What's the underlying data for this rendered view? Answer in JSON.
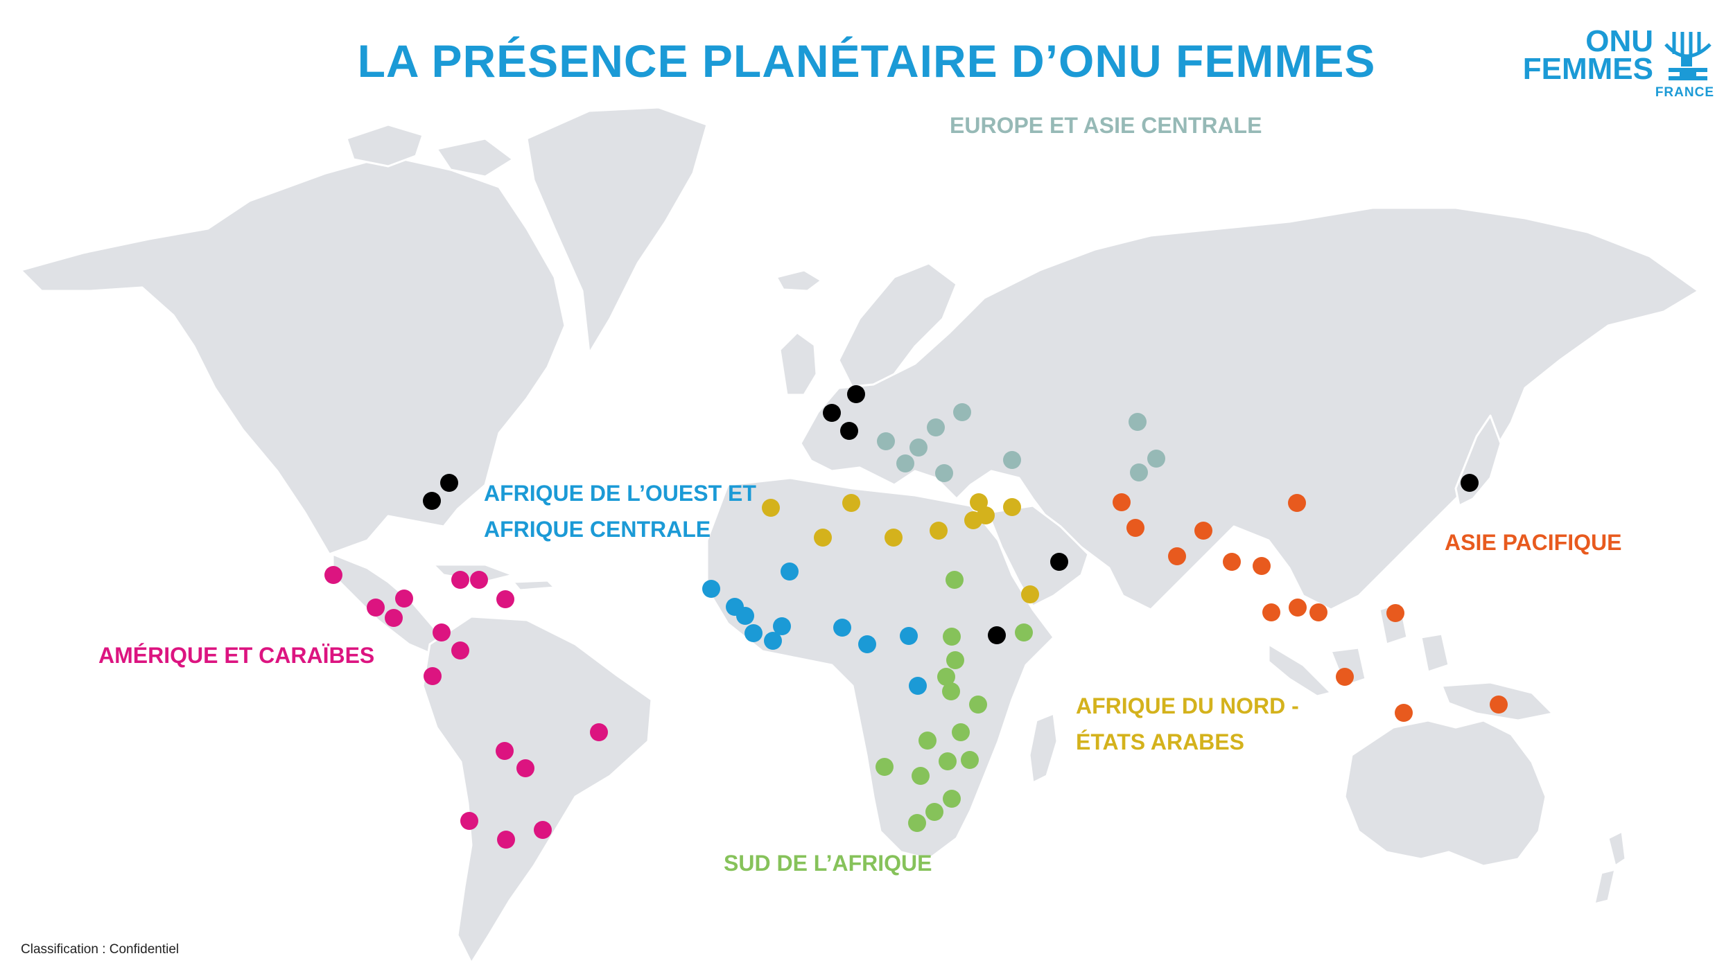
{
  "title": "LA PRÉSENCE PLANÉTAIRE D’ONU FEMMES",
  "logo": {
    "line1": "ONU",
    "line2": "FEMMES",
    "line3": "FRANCE"
  },
  "footer": "Classification : Confidentiel",
  "colors": {
    "title": "#1b9ad6",
    "land": "#dfe1e5",
    "europe": "#96b9b6",
    "west_africa": "#1b9ad6",
    "north_africa": "#d4b21c",
    "south_africa": "#86c25a",
    "asia": "#e85a1e",
    "americas": "#dc1480",
    "hq": "#000000"
  },
  "regions": [
    {
      "id": "europe",
      "label_lines": [
        "EUROPE ET ASIE CENTRALE"
      ]
    },
    {
      "id": "west_africa",
      "label_lines": [
        "AFRIQUE DE L’OUEST ET",
        "AFRIQUE CENTRALE"
      ]
    },
    {
      "id": "asia",
      "label_lines": [
        "ASIE PACIFIQUE"
      ]
    },
    {
      "id": "americas",
      "label_lines": [
        "AMÉRIQUE ET CARAÏBES"
      ]
    },
    {
      "id": "north_africa",
      "label_lines": [
        "AFRIQUE DU NORD -",
        "ÉTATS ARABES"
      ]
    },
    {
      "id": "south_africa",
      "label_lines": [
        "SUD DE L’AFRIQUE"
      ]
    }
  ],
  "legend": [
    {
      "region": "europe",
      "name": "EUROPE ET ASIE CENTRALE"
    },
    {
      "region": "west_africa",
      "name": "AFRIQUE DE L’OUEST ET AFRIQUE CENTRALE"
    },
    {
      "region": "asia",
      "name": "ASIE PACIFIQUE"
    },
    {
      "region": "americas",
      "name": "AMÉRIQUE ET CARAÏBES"
    },
    {
      "region": "north_africa",
      "name": "AFRIQUE DU NORD - ÉTATS ARABES"
    },
    {
      "region": "south_africa",
      "name": "SUD DE L’AFRIQUE"
    }
  ]
}
